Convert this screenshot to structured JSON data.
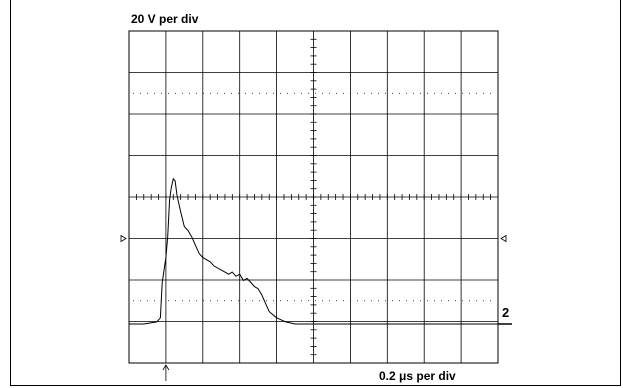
{
  "scope": {
    "vertical_scale_label": "20 V per div",
    "horizontal_scale_label": "0.2 μs per div",
    "channel_label": "2"
  },
  "chart_data": {
    "type": "line",
    "title": "",
    "xlabel": "0.2 μs per div",
    "ylabel": "20 V per div",
    "grid": true,
    "divisions": {
      "x": 10,
      "y": 8
    },
    "xlim": [
      0,
      2.0
    ],
    "ylim": [
      0,
      160
    ],
    "x_unit": "μs",
    "y_unit": "V",
    "trigger_marker_x": 0.2,
    "series": [
      {
        "x": [
          0.0,
          0.08,
          0.15,
          0.17,
          0.18,
          0.2,
          0.21,
          0.22,
          0.23,
          0.24,
          0.25,
          0.26,
          0.28,
          0.3,
          0.32,
          0.34,
          0.36,
          0.38,
          0.4,
          0.42,
          0.44,
          0.46,
          0.48,
          0.5,
          0.52,
          0.54,
          0.56,
          0.58,
          0.6,
          0.62,
          0.64,
          0.66,
          0.68,
          0.7,
          0.72,
          0.74,
          0.76,
          0.8,
          0.85,
          0.9,
          1.0,
          1.2,
          1.4,
          1.6,
          1.8,
          2.0
        ],
        "y": [
          0,
          0,
          1,
          3,
          20,
          32,
          42,
          60,
          66,
          70,
          69,
          62,
          54,
          47,
          45,
          42,
          38,
          34,
          32,
          31,
          30,
          28,
          27,
          26,
          25,
          24,
          25,
          23,
          24,
          21,
          22,
          20,
          18,
          17,
          14,
          10,
          6,
          3,
          1,
          0,
          0,
          0,
          0,
          0,
          0,
          0
        ]
      }
    ]
  }
}
